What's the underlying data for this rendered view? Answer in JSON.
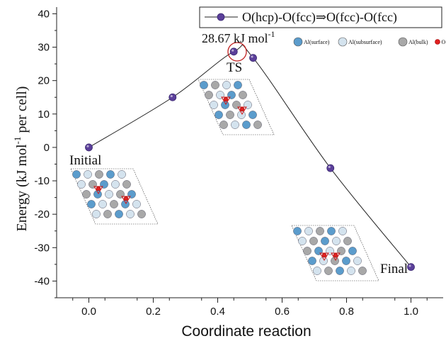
{
  "chart_data": {
    "type": "line",
    "xlabel": "Coordinate reaction",
    "ylabel_main": "Energy (kJ mol",
    "ylabel_sup": "-1",
    "ylabel_tail": " per cell)",
    "xlim": [
      -0.1,
      1.1
    ],
    "ylim": [
      -45,
      42
    ],
    "xticks": [
      0.0,
      0.2,
      0.4,
      0.6,
      0.8,
      1.0
    ],
    "xtick_labels": [
      "0.0",
      "0.2",
      "0.4",
      "0.6",
      "0.8",
      "1.0"
    ],
    "yticks": [
      40,
      30,
      20,
      10,
      0,
      -10,
      -20,
      -30,
      -40
    ],
    "ytick_labels": [
      "40",
      "30",
      "20",
      "10",
      "0",
      "-10",
      "-20",
      "-30",
      "-40"
    ],
    "grid": false,
    "legend_position": "top-right",
    "series": [
      {
        "name": "O(hcp)-O(fcc)⇒O(fcc)-O(fcc)",
        "color": "#5b3f9a",
        "x": [
          0.0,
          0.26,
          0.45,
          0.51,
          0.75,
          1.0
        ],
        "y": [
          0.0,
          15.0,
          28.67,
          26.8,
          -6.2,
          -35.8
        ]
      }
    ],
    "annotations": {
      "ts_energy": "28.67 kJ mol",
      "ts_energy_sup": "-1",
      "ts": "TS",
      "initial": "Initial",
      "final": "Final"
    },
    "atom_legend": [
      {
        "label": "Al(surface)",
        "color": "#5b9ccc",
        "icon": "surface-atom-icon"
      },
      {
        "label": "Al(subsurface)",
        "color": "#d4e3ee",
        "icon": "subsurface-atom-icon"
      },
      {
        "label": "Al(bulk)",
        "color": "#a8a8a8",
        "icon": "bulk-atom-icon"
      },
      {
        "label": "O",
        "color": "#e02020",
        "icon": "oxygen-atom-icon"
      }
    ]
  }
}
